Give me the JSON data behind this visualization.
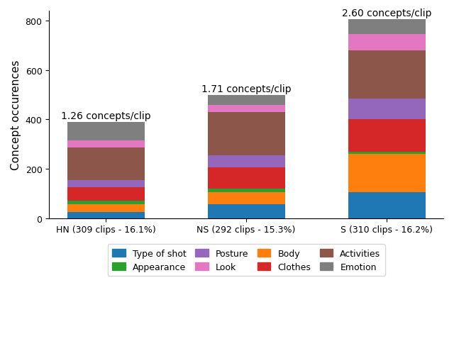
{
  "categories": [
    "HN (309 clips - 16.1%)",
    "NS (292 clips - 15.3%)",
    "S (310 clips - 16.2%)"
  ],
  "annotations": [
    "1.26 concepts/clip",
    "1.71 concepts/clip",
    "2.60 concepts/clip"
  ],
  "stack_order": [
    "Type of shot",
    "Body",
    "Appearance",
    "Clothes",
    "Posture",
    "Activities",
    "Look",
    "Emotion"
  ],
  "segments": {
    "Type of shot": [
      25,
      55,
      105
    ],
    "Body": [
      30,
      50,
      155
    ],
    "Appearance": [
      15,
      15,
      10
    ],
    "Clothes": [
      55,
      85,
      130
    ],
    "Posture": [
      30,
      50,
      85
    ],
    "Activities": [
      130,
      175,
      195
    ],
    "Look": [
      30,
      30,
      65
    ],
    "Emotion": [
      75,
      40,
      61
    ]
  },
  "colors": {
    "Type of shot": "#1f77b4",
    "Body": "#ff7f0e",
    "Appearance": "#2ca02c",
    "Clothes": "#d62728",
    "Posture": "#9467bd",
    "Activities": "#8c564b",
    "Look": "#e377c2",
    "Emotion": "#7f7f7f"
  },
  "ylabel": "Concept occurences",
  "ylim": [
    0,
    840
  ],
  "yticks": [
    0,
    200,
    400,
    600,
    800
  ],
  "legend_order": [
    "Type of shot",
    "Appearance",
    "Posture",
    "Look",
    "Body",
    "Clothes",
    "Activities",
    "Emotion"
  ],
  "annotation_fontsize": 10,
  "annotation_fontweight": "normal",
  "bar_width": 0.55,
  "xlabel_fontsize": 9,
  "ylabel_fontsize": 11
}
